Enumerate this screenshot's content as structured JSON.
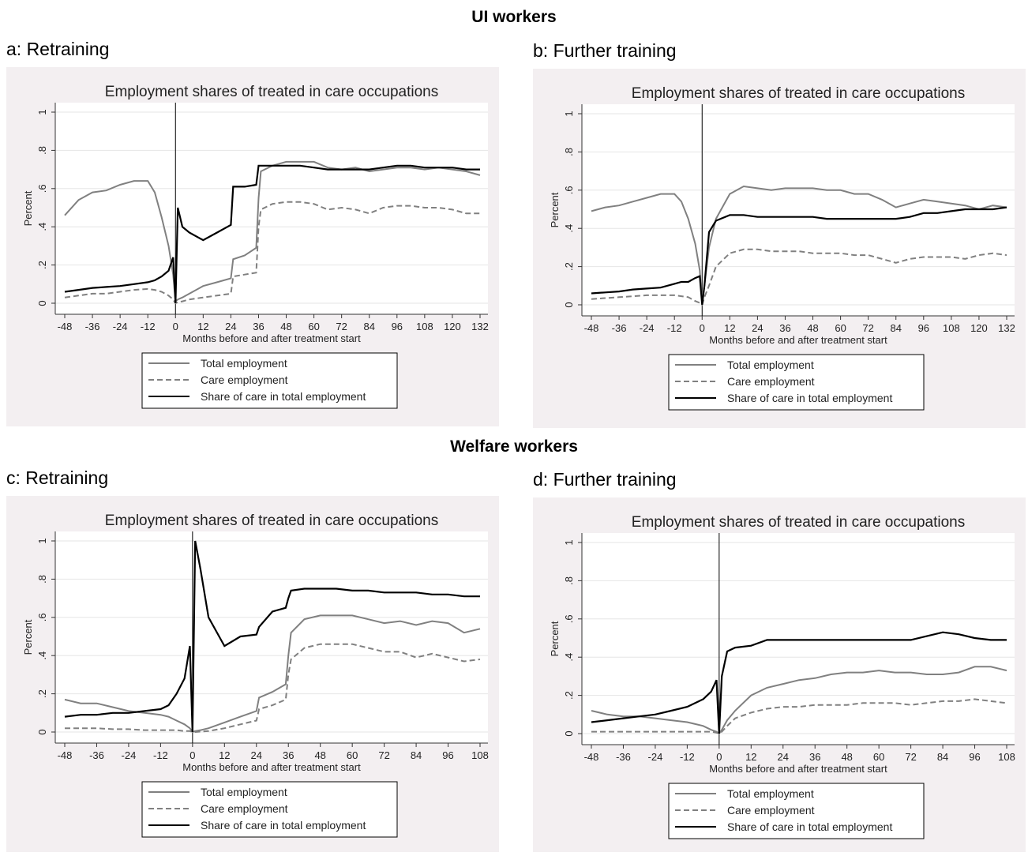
{
  "headings": [
    "UI workers",
    "Welfare workers"
  ],
  "chart_data": [
    {
      "type": "line",
      "panel": "a: Retraining",
      "title": "Employment shares of treated in care occupations",
      "ylabel": "Percent",
      "xlabel": "Months before and after treatment start",
      "x": [
        -48,
        -42,
        -36,
        -30,
        -24,
        -18,
        -12,
        -9,
        -6,
        -3,
        -1,
        0,
        1,
        3,
        6,
        12,
        18,
        24,
        25,
        30,
        35,
        36,
        37,
        42,
        48,
        54,
        60,
        66,
        72,
        78,
        84,
        90,
        96,
        102,
        108,
        114,
        120,
        126,
        132
      ],
      "series": [
        {
          "name": "Total employment",
          "color": "#808080",
          "dash": false,
          "values": [
            0.46,
            0.54,
            0.58,
            0.59,
            0.62,
            0.64,
            0.64,
            0.58,
            0.45,
            0.3,
            0.15,
            0.01,
            0.02,
            0.03,
            0.05,
            0.09,
            0.11,
            0.13,
            0.23,
            0.25,
            0.29,
            0.55,
            0.69,
            0.72,
            0.74,
            0.74,
            0.74,
            0.71,
            0.7,
            0.71,
            0.69,
            0.7,
            0.71,
            0.71,
            0.7,
            0.71,
            0.7,
            0.69,
            0.67
          ]
        },
        {
          "name": "Care employment",
          "color": "#808080",
          "dash": true,
          "values": [
            0.03,
            0.04,
            0.05,
            0.05,
            0.06,
            0.07,
            0.075,
            0.07,
            0.06,
            0.04,
            0.02,
            0,
            0.005,
            0.01,
            0.02,
            0.03,
            0.04,
            0.05,
            0.14,
            0.15,
            0.16,
            0.4,
            0.49,
            0.52,
            0.53,
            0.53,
            0.52,
            0.49,
            0.5,
            0.49,
            0.47,
            0.5,
            0.51,
            0.51,
            0.5,
            0.5,
            0.49,
            0.47,
            0.47
          ]
        },
        {
          "name": "Share of care in total employment",
          "color": "#000000",
          "dash": false,
          "values": [
            0.06,
            0.07,
            0.08,
            0.085,
            0.09,
            0.1,
            0.11,
            0.12,
            0.14,
            0.17,
            0.24,
            0,
            0.5,
            0.4,
            0.37,
            0.33,
            0.37,
            0.41,
            0.61,
            0.61,
            0.62,
            0.72,
            0.72,
            0.72,
            0.72,
            0.72,
            0.71,
            0.7,
            0.7,
            0.7,
            0.7,
            0.71,
            0.72,
            0.72,
            0.71,
            0.71,
            0.71,
            0.7,
            0.7
          ]
        }
      ],
      "xlim": [
        -48,
        132
      ],
      "xticks": [
        -48,
        -36,
        -24,
        -12,
        0,
        12,
        24,
        36,
        48,
        60,
        72,
        84,
        96,
        108,
        120,
        132
      ],
      "ylim": [
        0,
        1
      ],
      "yticks": [
        0,
        {
          "value": 0.2,
          "label": ".2"
        },
        {
          "value": 0.4,
          "label": ".4"
        },
        {
          "value": 0.6,
          "label": ".6"
        },
        {
          "value": 0.8,
          "label": ".8"
        },
        1
      ],
      "vline": 0,
      "grid": true,
      "legend": "bottom"
    },
    {
      "type": "line",
      "panel": "b: Further training",
      "title": "Employment shares of treated in care occupations",
      "ylabel": "Percent",
      "xlabel": "Months before and after treatment start",
      "x": [
        -48,
        -42,
        -36,
        -30,
        -24,
        -18,
        -12,
        -9,
        -6,
        -3,
        -1,
        0,
        1,
        3,
        6,
        12,
        18,
        24,
        30,
        36,
        42,
        48,
        54,
        60,
        66,
        72,
        78,
        84,
        90,
        96,
        102,
        108,
        114,
        120,
        126,
        132
      ],
      "series": [
        {
          "name": "Total employment",
          "color": "#808080",
          "dash": false,
          "values": [
            0.49,
            0.51,
            0.52,
            0.54,
            0.56,
            0.58,
            0.58,
            0.54,
            0.45,
            0.32,
            0.18,
            0.01,
            0.1,
            0.3,
            0.45,
            0.58,
            0.62,
            0.61,
            0.6,
            0.61,
            0.61,
            0.61,
            0.6,
            0.6,
            0.58,
            0.58,
            0.55,
            0.51,
            0.53,
            0.55,
            0.54,
            0.53,
            0.52,
            0.5,
            0.52,
            0.51
          ]
        },
        {
          "name": "Care employment",
          "color": "#808080",
          "dash": true,
          "values": [
            0.03,
            0.035,
            0.04,
            0.045,
            0.05,
            0.05,
            0.05,
            0.045,
            0.04,
            0.02,
            0.01,
            0,
            0.04,
            0.1,
            0.2,
            0.27,
            0.29,
            0.29,
            0.28,
            0.28,
            0.28,
            0.27,
            0.27,
            0.27,
            0.26,
            0.26,
            0.24,
            0.22,
            0.24,
            0.25,
            0.25,
            0.25,
            0.24,
            0.26,
            0.27,
            0.26
          ]
        },
        {
          "name": "Share of care in total employment",
          "color": "#000000",
          "dash": false,
          "values": [
            0.06,
            0.065,
            0.07,
            0.08,
            0.085,
            0.09,
            0.11,
            0.12,
            0.12,
            0.14,
            0.15,
            0,
            0.1,
            0.38,
            0.44,
            0.47,
            0.47,
            0.46,
            0.46,
            0.46,
            0.46,
            0.46,
            0.45,
            0.45,
            0.45,
            0.45,
            0.45,
            0.45,
            0.46,
            0.48,
            0.48,
            0.49,
            0.5,
            0.5,
            0.5,
            0.51
          ]
        }
      ],
      "xlim": [
        -48,
        132
      ],
      "xticks": [
        -48,
        -36,
        -24,
        -12,
        0,
        12,
        24,
        36,
        48,
        60,
        72,
        84,
        96,
        108,
        120,
        132
      ],
      "ylim": [
        0,
        1
      ],
      "yticks": [
        0,
        {
          "value": 0.2,
          "label": ".2"
        },
        {
          "value": 0.4,
          "label": ".4"
        },
        {
          "value": 0.6,
          "label": ".6"
        },
        {
          "value": 0.8,
          "label": ".8"
        },
        1
      ],
      "vline": 0,
      "grid": true,
      "legend": "bottom"
    },
    {
      "type": "line",
      "panel": "c: Retraining",
      "title": "Employment shares of treated in care occupations",
      "ylabel": "Percent",
      "xlabel": "Months before and after treatment start",
      "x": [
        -48,
        -42,
        -36,
        -30,
        -24,
        -18,
        -12,
        -9,
        -6,
        -3,
        -1,
        0,
        1,
        3,
        6,
        12,
        18,
        24,
        25,
        30,
        35,
        36,
        37,
        42,
        48,
        54,
        60,
        66,
        72,
        78,
        84,
        90,
        96,
        102,
        108
      ],
      "series": [
        {
          "name": "Total employment",
          "color": "#808080",
          "dash": false,
          "values": [
            0.17,
            0.15,
            0.15,
            0.13,
            0.11,
            0.1,
            0.09,
            0.08,
            0.06,
            0.04,
            0.02,
            0,
            0.005,
            0.01,
            0.02,
            0.05,
            0.08,
            0.11,
            0.18,
            0.21,
            0.25,
            0.4,
            0.52,
            0.59,
            0.61,
            0.61,
            0.61,
            0.59,
            0.57,
            0.58,
            0.56,
            0.58,
            0.57,
            0.52,
            0.54
          ]
        },
        {
          "name": "Care employment",
          "color": "#808080",
          "dash": true,
          "values": [
            0.02,
            0.02,
            0.02,
            0.015,
            0.015,
            0.01,
            0.01,
            0.01,
            0.01,
            0.005,
            0.005,
            0,
            0,
            0.002,
            0.005,
            0.02,
            0.04,
            0.06,
            0.12,
            0.14,
            0.17,
            0.3,
            0.38,
            0.44,
            0.46,
            0.46,
            0.46,
            0.44,
            0.42,
            0.42,
            0.39,
            0.41,
            0.39,
            0.37,
            0.38
          ]
        },
        {
          "name": "Share of care in total employment",
          "color": "#000000",
          "dash": false,
          "values": [
            0.08,
            0.09,
            0.09,
            0.1,
            0.1,
            0.11,
            0.12,
            0.14,
            0.2,
            0.28,
            0.45,
            0,
            1,
            0.85,
            0.6,
            0.45,
            0.5,
            0.51,
            0.55,
            0.63,
            0.65,
            0.7,
            0.74,
            0.75,
            0.75,
            0.75,
            0.74,
            0.74,
            0.73,
            0.73,
            0.73,
            0.72,
            0.72,
            0.71,
            0.71
          ]
        }
      ],
      "xlim": [
        -48,
        108
      ],
      "xticks": [
        -48,
        -36,
        -24,
        -12,
        0,
        12,
        24,
        36,
        48,
        60,
        72,
        84,
        96,
        108
      ],
      "ylim": [
        0,
        1
      ],
      "yticks": [
        0,
        {
          "value": 0.2,
          "label": ".2"
        },
        {
          "value": 0.4,
          "label": ".4"
        },
        {
          "value": 0.6,
          "label": ".6"
        },
        {
          "value": 0.8,
          "label": ".8"
        },
        1
      ],
      "vline": 0,
      "grid": true,
      "legend": "bottom"
    },
    {
      "type": "line",
      "panel": "d: Further training",
      "title": "Employment shares of treated in care occupations",
      "ylabel": "Percent",
      "xlabel": "Months before and after treatment start",
      "x": [
        -48,
        -42,
        -36,
        -30,
        -24,
        -18,
        -12,
        -9,
        -6,
        -3,
        -1,
        0,
        1,
        3,
        6,
        12,
        18,
        24,
        30,
        36,
        42,
        48,
        54,
        60,
        66,
        72,
        78,
        84,
        90,
        96,
        102,
        108
      ],
      "series": [
        {
          "name": "Total employment",
          "color": "#808080",
          "dash": false,
          "values": [
            0.12,
            0.1,
            0.09,
            0.09,
            0.08,
            0.07,
            0.06,
            0.05,
            0.04,
            0.02,
            0.01,
            0,
            0.02,
            0.07,
            0.12,
            0.2,
            0.24,
            0.26,
            0.28,
            0.29,
            0.31,
            0.32,
            0.32,
            0.33,
            0.32,
            0.32,
            0.31,
            0.31,
            0.32,
            0.35,
            0.35,
            0.33
          ]
        },
        {
          "name": "Care employment",
          "color": "#808080",
          "dash": true,
          "values": [
            0.01,
            0.01,
            0.01,
            0.01,
            0.01,
            0.01,
            0.01,
            0.01,
            0.01,
            0.01,
            0.005,
            0,
            0.01,
            0.04,
            0.08,
            0.11,
            0.13,
            0.14,
            0.14,
            0.15,
            0.15,
            0.15,
            0.16,
            0.16,
            0.16,
            0.15,
            0.16,
            0.17,
            0.17,
            0.18,
            0.17,
            0.16
          ]
        },
        {
          "name": "Share of care in total employment",
          "color": "#000000",
          "dash": false,
          "values": [
            0.06,
            0.07,
            0.08,
            0.09,
            0.1,
            0.12,
            0.14,
            0.16,
            0.18,
            0.22,
            0.28,
            0,
            0.3,
            0.43,
            0.45,
            0.46,
            0.49,
            0.49,
            0.49,
            0.49,
            0.49,
            0.49,
            0.49,
            0.49,
            0.49,
            0.49,
            0.51,
            0.53,
            0.52,
            0.5,
            0.49,
            0.49
          ]
        }
      ],
      "xlim": [
        -48,
        108
      ],
      "xticks": [
        -48,
        -36,
        -24,
        -12,
        0,
        12,
        24,
        36,
        48,
        60,
        72,
        84,
        96,
        108
      ],
      "ylim": [
        0,
        1
      ],
      "yticks": [
        0,
        {
          "value": 0.2,
          "label": ".2"
        },
        {
          "value": 0.4,
          "label": ".4"
        },
        {
          "value": 0.6,
          "label": ".6"
        },
        {
          "value": 0.8,
          "label": ".8"
        },
        1
      ],
      "vline": 0,
      "grid": true,
      "legend": "bottom"
    }
  ]
}
